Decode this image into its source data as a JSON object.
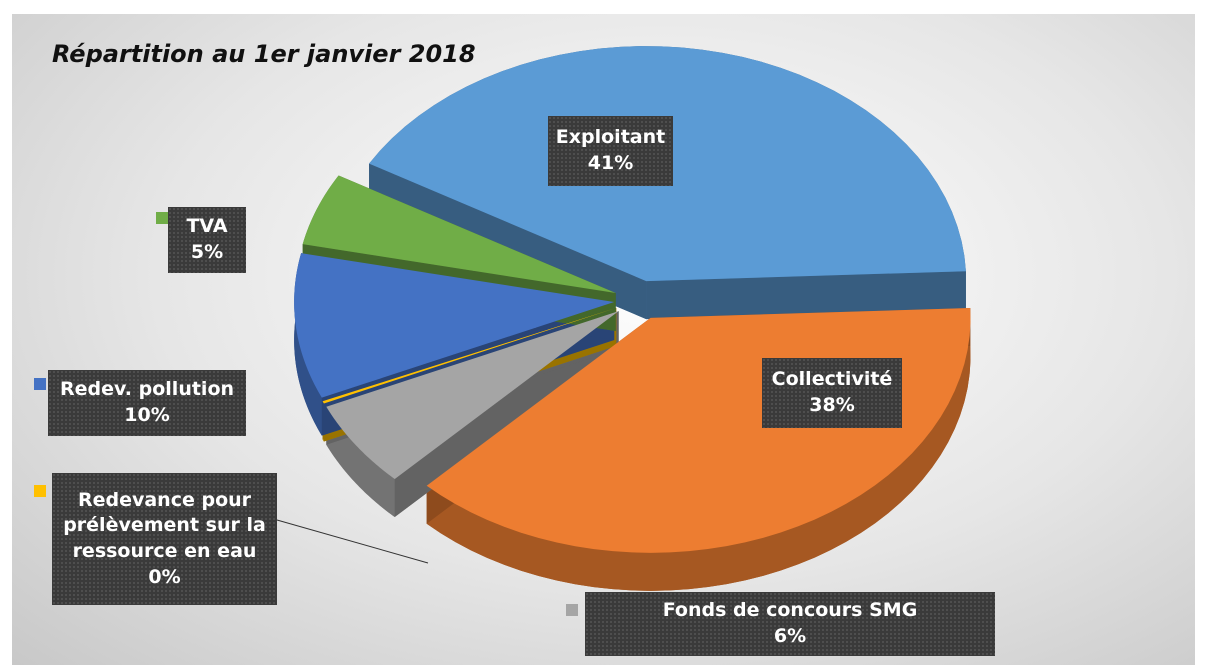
{
  "chart_data": {
    "type": "pie3d",
    "title": "Répartition au 1er janvier 2018",
    "categories": [
      "Exploitant",
      "Collectivité",
      "Fonds de concours SMG",
      "Redevance pour prélèvement sur la ressource en eau",
      "Redev. pollution",
      "TVA"
    ],
    "values": [
      41,
      38,
      6,
      0,
      10,
      5
    ],
    "value_labels": [
      "41%",
      "38%",
      "6%",
      "0%",
      "10%",
      "5%"
    ],
    "colors": [
      "#5b9bd5",
      "#ed7d31",
      "#a5a5a5",
      "#ffc000",
      "#4472c4",
      "#70ad47"
    ]
  }
}
